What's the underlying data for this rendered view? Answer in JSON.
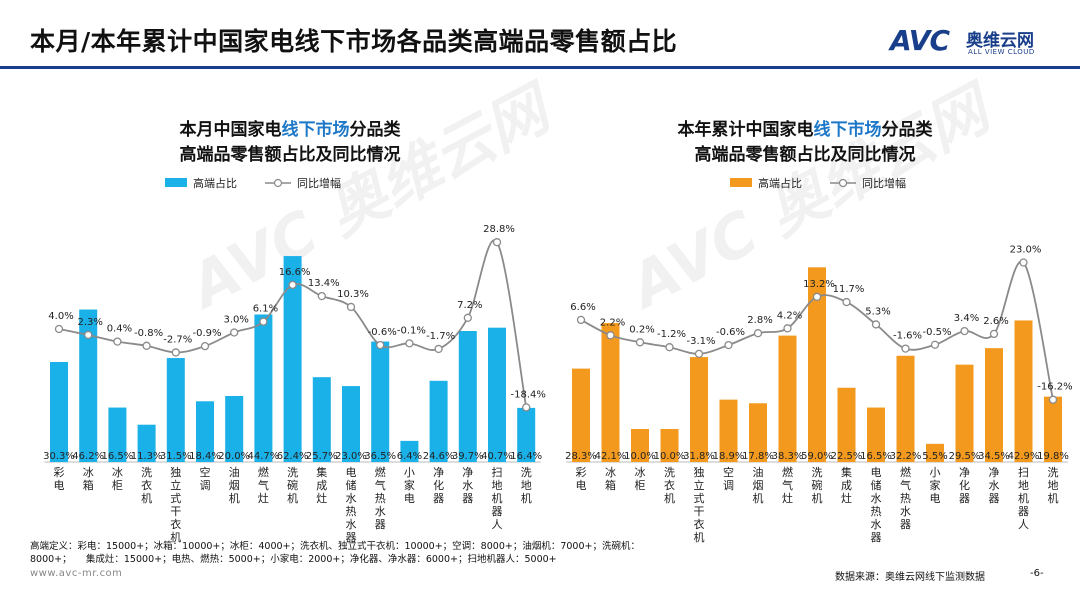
{
  "header": {
    "title": "本月/本年累计中国家电线下市场各品类高端品零售额占比",
    "logo_mark": "AVC",
    "logo_cn": "奥维云网",
    "logo_en": "ALL VIEW CLOUD"
  },
  "categories": [
    "彩电",
    "冰箱",
    "冰柜",
    "洗衣机",
    "独立式干衣机",
    "空调",
    "油烟机",
    "燃气灶",
    "洗碗机",
    "集成灶",
    "电储水热水器",
    "燃气热水器",
    "小家电",
    "净化器",
    "净水器",
    "扫地机器人",
    "洗地机"
  ],
  "chart_data": [
    {
      "type": "bar",
      "title_parts": [
        "本月中国家电",
        "线下市场",
        "分品类"
      ],
      "title_line2": "高端品零售额占比及同比情况",
      "legend": {
        "bar": "高端占比",
        "line": "同比增幅"
      },
      "bar_color": "#1ab0e8",
      "line_color": "#8a8a8a",
      "bar_values": [
        30.3,
        46.2,
        16.5,
        11.3,
        31.5,
        18.4,
        20.0,
        44.7,
        62.4,
        25.7,
        23.0,
        36.5,
        6.4,
        24.6,
        39.7,
        40.7,
        16.4
      ],
      "bar_labels": [
        "30.3%",
        "46.2%",
        "16.5%",
        "11.3%",
        "31.5%",
        "18.4%",
        "20.0%",
        "44.7%",
        "62.4%",
        "25.7%",
        "23.0%",
        "36.5%",
        "6.4%",
        "24.6%",
        "39.7%",
        "40.7%",
        "16.4%"
      ],
      "line_values": [
        4.0,
        2.3,
        0.4,
        -0.8,
        -2.7,
        -0.9,
        3.0,
        6.1,
        16.6,
        13.4,
        10.3,
        -0.6,
        -0.1,
        -1.7,
        7.2,
        28.8,
        -18.4
      ],
      "line_labels": [
        "4.0%",
        "2.3%",
        "0.4%",
        "-0.8%",
        "-2.7%",
        "-0.9%",
        "3.0%",
        "6.1%",
        "16.6%",
        "13.4%",
        "10.3%",
        "-0.6%",
        "-0.1%",
        "-1.7%",
        "7.2%",
        "28.8%",
        "-18.4%"
      ]
    },
    {
      "type": "bar",
      "title_parts": [
        "本年累计中国家电",
        "线下市场",
        "分品类"
      ],
      "title_line2": "高端品零售额占比及同比情况",
      "legend": {
        "bar": "高端占比",
        "line": "同比增幅"
      },
      "bar_color": "#f39a1e",
      "line_color": "#8a8a8a",
      "bar_values": [
        28.3,
        42.1,
        10.0,
        10.0,
        31.8,
        18.9,
        17.8,
        38.3,
        59.0,
        22.5,
        16.5,
        32.2,
        5.5,
        29.5,
        34.5,
        42.9,
        19.8
      ],
      "bar_labels": [
        "28.3%",
        "42.1%",
        "10.0%",
        "10.0%",
        "31.8%",
        "18.9%",
        "17.8%",
        "38.3%",
        "59.0%",
        "22.5%",
        "16.5%",
        "32.2%",
        "5.5%",
        "29.5%",
        "34.5%",
        "42.9%",
        "19.8%"
      ],
      "line_values": [
        6.6,
        2.2,
        0.2,
        -1.2,
        -3.1,
        -0.6,
        2.8,
        4.2,
        13.2,
        11.7,
        5.3,
        -1.6,
        -0.5,
        3.4,
        2.6,
        23.0,
        -16.2
      ],
      "line_labels": [
        "6.6%",
        "2.2%",
        "0.2%",
        "-1.2%",
        "-3.1%",
        "-0.6%",
        "2.8%",
        "4.2%",
        "13.2%",
        "11.7%",
        "5.3%",
        "-1.6%",
        "-0.5%",
        "3.4%",
        "2.6%",
        "23.0%",
        "-16.2%"
      ]
    }
  ],
  "footer": {
    "definition": "高端定义：彩电：15000+；冰箱：10000+；冰柜：4000+；洗衣机、独立式干衣机：10000+；空调：8000+；油烟机：7000+；洗碗机：8000+；　　集成灶：15000+；电热、燃热：5000+；小家电：2000+；净化器、净水器：6000+；扫地机器人：5000+",
    "site": "www.avc-mr.com",
    "source": "数据来源：奥维云网线下监测数据",
    "page": "-6-"
  }
}
